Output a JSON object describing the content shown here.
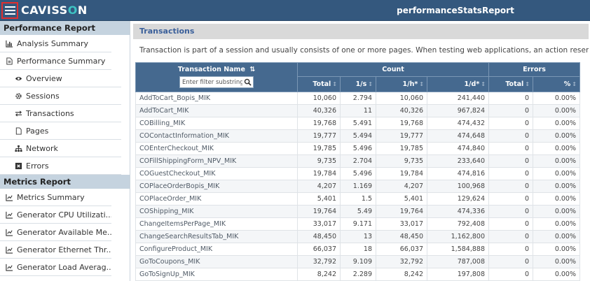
{
  "header": {
    "logo_left": "CAVISS",
    "logo_o": "O",
    "logo_right": "N",
    "title": "performanceStatsReport"
  },
  "sidebar": {
    "performance_section": "Performance Report",
    "performance_items": [
      {
        "label": "Analysis Summary",
        "icon": "bar-chart-icon"
      },
      {
        "label": "Performance Summary",
        "icon": "document-icon"
      }
    ],
    "performance_subitems": [
      {
        "label": "Overview",
        "icon": "eye-icon"
      },
      {
        "label": "Sessions",
        "icon": "gears-icon"
      },
      {
        "label": "Transactions",
        "icon": "exchange-icon"
      },
      {
        "label": "Pages",
        "icon": "page-icon"
      },
      {
        "label": "Network",
        "icon": "sitemap-icon"
      },
      {
        "label": "Errors",
        "icon": "error-box-icon"
      }
    ],
    "metrics_section": "Metrics Report",
    "metrics_items": [
      {
        "label": "Metrics Summary",
        "icon": "line-chart-icon"
      },
      {
        "label": "Generator CPU Utilizati...",
        "icon": "line-chart-icon"
      },
      {
        "label": "Generator Available Me...",
        "icon": "line-chart-icon"
      },
      {
        "label": "Generator Ethernet Thr...",
        "icon": "line-chart-icon"
      },
      {
        "label": "Generator Load Averag...",
        "icon": "line-chart-icon"
      }
    ]
  },
  "main": {
    "section_title": "Transactions",
    "description": "Transaction is part of a session and usually consists of one or more pages. When testing web applications, an action resembles a page",
    "table": {
      "name_header": "Transaction Name",
      "filter_placeholder": "Enter filter substring",
      "count_header": "Count",
      "errors_header": "Errors",
      "sub_headers": [
        "Total",
        "1/s",
        "1/h*",
        "1/d*",
        "Total",
        "%"
      ],
      "rows": [
        [
          "AddToCart_Bopis_MIK",
          "10,060",
          "2.794",
          "10,060",
          "241,440",
          "0",
          "0.00%"
        ],
        [
          "AddToCart_MIK",
          "40,326",
          "11",
          "40,326",
          "967,824",
          "0",
          "0.00%"
        ],
        [
          "COBilling_MIK",
          "19,768",
          "5.491",
          "19,768",
          "474,432",
          "0",
          "0.00%"
        ],
        [
          "COContactInformation_MIK",
          "19,777",
          "5.494",
          "19,777",
          "474,648",
          "0",
          "0.00%"
        ],
        [
          "COEnterCheckout_MIK",
          "19,785",
          "5.496",
          "19,785",
          "474,840",
          "0",
          "0.00%"
        ],
        [
          "COFillShippingForm_NPV_MIK",
          "9,735",
          "2.704",
          "9,735",
          "233,640",
          "0",
          "0.00%"
        ],
        [
          "COGuestCheckout_MIK",
          "19,784",
          "5.496",
          "19,784",
          "474,816",
          "0",
          "0.00%"
        ],
        [
          "COPlaceOrderBopis_MIK",
          "4,207",
          "1.169",
          "4,207",
          "100,968",
          "0",
          "0.00%"
        ],
        [
          "COPlaceOrder_MIK",
          "5,401",
          "1.5",
          "5,401",
          "129,624",
          "0",
          "0.00%"
        ],
        [
          "COShipping_MIK",
          "19,764",
          "5.49",
          "19,764",
          "474,336",
          "0",
          "0.00%"
        ],
        [
          "ChangeItemsPerPage_MIK",
          "33,017",
          "9.171",
          "33,017",
          "792,408",
          "0",
          "0.00%"
        ],
        [
          "ChangeSearchResultsTab_MIK",
          "48,450",
          "13",
          "48,450",
          "1,162,800",
          "0",
          "0.00%"
        ],
        [
          "ConfigureProduct_MIK",
          "66,037",
          "18",
          "66,037",
          "1,584,888",
          "0",
          "0.00%"
        ],
        [
          "GoToCoupons_MIK",
          "32,792",
          "9.109",
          "32,792",
          "787,008",
          "0",
          "0.00%"
        ],
        [
          "GoToSignUp_MIK",
          "8,242",
          "2.289",
          "8,242",
          "197,808",
          "0",
          "0.00%"
        ]
      ]
    }
  }
}
